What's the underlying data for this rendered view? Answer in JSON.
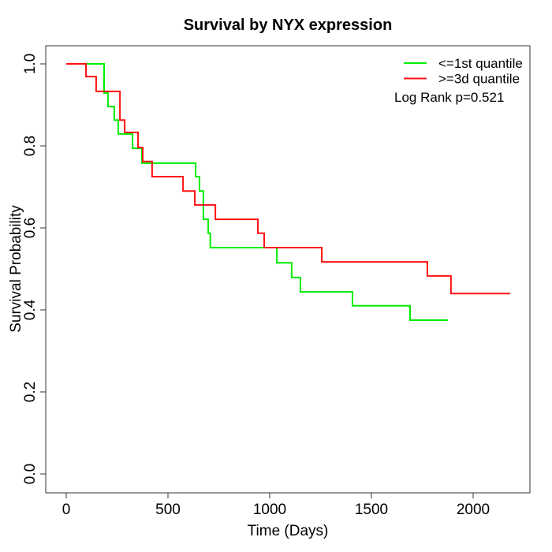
{
  "figure_title": "Survival by NYX expression",
  "chart_data": {
    "type": "line",
    "subtype": "kaplan-meier-step",
    "title": "Survival by NYX expression",
    "xlabel": "Time (Days)",
    "ylabel": "Survival Probability",
    "xlim": [
      0,
      2200
    ],
    "ylim": [
      0.0,
      1.0
    ],
    "grid": false,
    "legend_position": "top-right",
    "annotation": "Log Rank p=0.521",
    "log_rank_p": 0.521,
    "x_ticks": {
      "values": [
        0,
        500,
        1000,
        1500,
        2000
      ],
      "labels": [
        "0",
        "500",
        "1000",
        "1500",
        "2000"
      ]
    },
    "y_ticks": {
      "values": [
        0.0,
        0.2,
        0.4,
        0.6,
        0.8,
        1.0
      ],
      "labels": [
        "0.0",
        "0.2",
        "0.4",
        "0.6",
        "0.8",
        "1.0"
      ]
    },
    "series": [
      {
        "name": "<=1st quantile",
        "color": "#00EE00",
        "end_time": 1876,
        "steps": [
          [
            0,
            1.0
          ],
          [
            186,
            0.929
          ],
          [
            205,
            0.896
          ],
          [
            236,
            0.863
          ],
          [
            256,
            0.829
          ],
          [
            326,
            0.794
          ],
          [
            372,
            0.758
          ],
          [
            636,
            0.725
          ],
          [
            655,
            0.69
          ],
          [
            674,
            0.621
          ],
          [
            698,
            0.587
          ],
          [
            708,
            0.552
          ],
          [
            1035,
            0.515
          ],
          [
            1108,
            0.479
          ],
          [
            1151,
            0.444
          ],
          [
            1407,
            0.41
          ],
          [
            1690,
            0.375
          ]
        ]
      },
      {
        "name": ">=3d quantile",
        "color": "#FF1111",
        "end_time": 2182,
        "steps": [
          [
            0,
            1.0
          ],
          [
            97,
            0.969
          ],
          [
            147,
            0.933
          ],
          [
            264,
            0.863
          ],
          [
            287,
            0.833
          ],
          [
            353,
            0.796
          ],
          [
            376,
            0.762
          ],
          [
            422,
            0.725
          ],
          [
            574,
            0.69
          ],
          [
            632,
            0.656
          ],
          [
            733,
            0.621
          ],
          [
            942,
            0.587
          ],
          [
            973,
            0.552
          ],
          [
            1256,
            0.517
          ],
          [
            1775,
            0.483
          ],
          [
            1891,
            0.44
          ]
        ]
      }
    ]
  }
}
